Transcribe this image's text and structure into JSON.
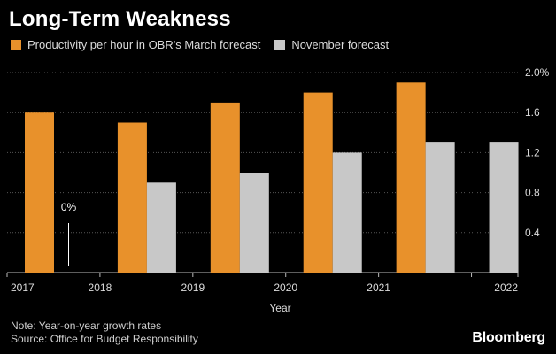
{
  "chart_data": {
    "type": "bar",
    "title": "Long-Term Weakness",
    "xlabel": "Year",
    "ylabel": "",
    "categories": [
      "2017",
      "2018",
      "2019",
      "2020",
      "2021",
      "2022"
    ],
    "series": [
      {
        "name": "Productivity per hour in OBR's March forecast",
        "color": "#e8912b",
        "values": [
          1.6,
          1.5,
          1.7,
          1.8,
          1.9,
          null
        ]
      },
      {
        "name": "November forecast",
        "color": "#c8c8c8",
        "values": [
          0,
          0.9,
          1.0,
          1.2,
          1.3,
          1.3
        ]
      }
    ],
    "ylim": [
      0,
      2.0
    ],
    "yticks": [
      "0.4",
      "0.8",
      "1.2",
      "1.6",
      "2.0%"
    ],
    "ytick_values": [
      0.4,
      0.8,
      1.2,
      1.6,
      2.0
    ],
    "annotations": [
      {
        "text": "0%",
        "category": "2017",
        "series": "November forecast"
      }
    ],
    "grid": true,
    "legend_position": "top-left",
    "yaxis_side": "right"
  },
  "notes": {
    "line1": "Note: Year-on-year growth rates",
    "line2": "Source: Office for Budget Responsibility"
  },
  "brand": "Bloomberg",
  "colors": {
    "background": "#000000",
    "grid": "#555555",
    "text": "#dcdcdc"
  }
}
